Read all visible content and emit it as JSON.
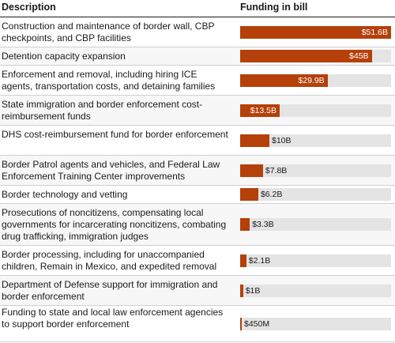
{
  "header": {
    "description": "Description",
    "funding": "Funding in bill"
  },
  "chart_data": {
    "type": "bar",
    "orientation": "horizontal",
    "unit": "billion USD",
    "xlim": [
      0,
      51.6
    ],
    "categories": [
      "Construction and maintenance of border wall, CBP checkpoints, and CBP facilities",
      "Detention capacity expansion",
      "Enforcement and removal, including hiring ICE agents, transportation costs, and detaining families",
      "State immigration and border enforcement cost-reimbursement funds",
      "DHS cost-reimbursement fund for border enforcement",
      "Border Patrol agents and vehicles, and Federal Law Enforcement Training Center improvements",
      "Border technology and vetting",
      "Prosecutions of noncitizens, compensating local governments for incarcerating noncitizens, combating drug trafficking, immigration judges",
      "Border processing, including for unaccompanied children, Remain in Mexico, and expedited removal",
      "Department of Defense support for immigration and border enforcement",
      "Funding to state and local law enforcement agencies to support border enforcement"
    ],
    "values": [
      51.6,
      45,
      29.9,
      13.5,
      10,
      7.8,
      6.2,
      3.3,
      2.1,
      1,
      0.45
    ],
    "labels": [
      "$51.6B",
      "$45B",
      "$29.9B",
      "$13.5B",
      "$10B",
      "$7.8B",
      "$6.2B",
      "$3.3B",
      "$2.1B",
      "$1B",
      "$450M"
    ]
  },
  "colors": {
    "bar": "#b5400a",
    "track": "#e4e4e4",
    "row_alt": "#f7f7f7"
  }
}
